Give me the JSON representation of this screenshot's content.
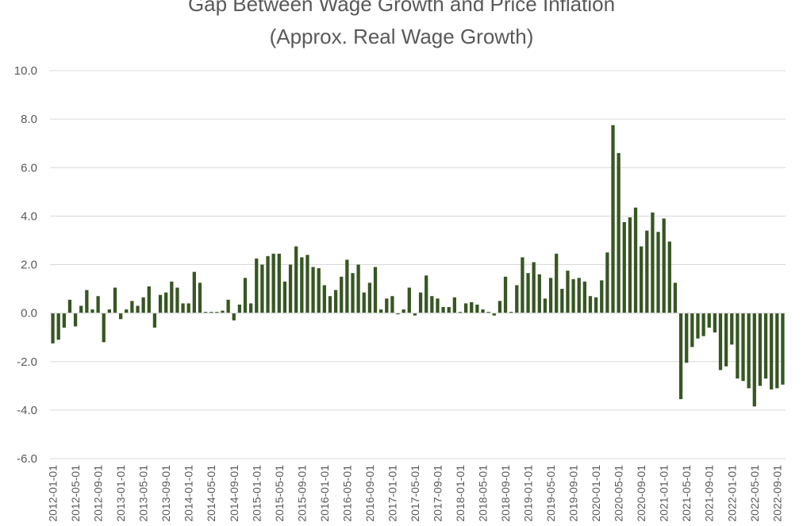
{
  "chart_data": {
    "type": "bar",
    "title": "Gap Between Wage Growth and Price Inflation",
    "subtitle": "(Approx. Real Wage Growth)",
    "xlabel": "",
    "ylabel": "",
    "ylim": [
      -6.0,
      10.0
    ],
    "y_ticks": [
      "10.0",
      "8.0",
      "6.0",
      "4.0",
      "2.0",
      "0.0",
      "-2.0",
      "-4.0",
      "-6.0"
    ],
    "grid": true,
    "legend": "none",
    "bar_color": "#375623",
    "x_tick_labels": [
      "2012-01-01",
      "2012-05-01",
      "2012-09-01",
      "2013-01-01",
      "2013-05-01",
      "2013-09-01",
      "2014-01-01",
      "2014-05-01",
      "2014-09-01",
      "2015-01-01",
      "2015-05-01",
      "2015-09-01",
      "2016-01-01",
      "2016-05-01",
      "2016-09-01",
      "2017-01-01",
      "2017-05-01",
      "2017-09-01",
      "2018-01-01",
      "2018-05-01",
      "2018-09-01",
      "2019-01-01",
      "2019-05-01",
      "2019-09-01",
      "2020-01-01",
      "2020-05-01",
      "2020-09-01",
      "2021-01-01",
      "2021-05-01",
      "2021-09-01",
      "2022-01-01",
      "2022-05-01",
      "2022-09-01"
    ],
    "x_tick_every": 4,
    "values": [
      -1.25,
      -1.1,
      -0.6,
      0.55,
      -0.55,
      0.3,
      0.95,
      0.15,
      0.7,
      -1.2,
      0.15,
      1.05,
      -0.25,
      0.15,
      0.5,
      0.3,
      0.65,
      1.1,
      -0.6,
      0.75,
      0.85,
      1.3,
      1.05,
      0.4,
      0.4,
      1.7,
      1.25,
      0.05,
      0.05,
      0.05,
      0.1,
      0.55,
      -0.3,
      0.35,
      1.45,
      0.4,
      2.25,
      2.0,
      2.35,
      2.45,
      2.45,
      1.3,
      2.0,
      2.75,
      2.3,
      2.4,
      1.9,
      1.85,
      1.15,
      0.7,
      0.95,
      1.5,
      2.2,
      1.65,
      2.0,
      0.85,
      1.25,
      1.9,
      0.15,
      0.6,
      0.7,
      -0.05,
      0.15,
      1.05,
      -0.1,
      0.85,
      1.55,
      0.7,
      0.6,
      0.25,
      0.25,
      0.65,
      0.05,
      0.4,
      0.45,
      0.35,
      0.15,
      0.05,
      -0.1,
      0.5,
      1.5,
      0.05,
      1.15,
      2.3,
      1.65,
      2.1,
      1.6,
      0.6,
      1.45,
      2.45,
      1.0,
      1.75,
      1.4,
      1.45,
      1.3,
      0.7,
      0.65,
      1.35,
      2.5,
      7.75,
      6.6,
      3.75,
      3.95,
      4.35,
      2.75,
      3.4,
      4.15,
      3.35,
      3.9,
      2.95,
      1.25,
      -3.55,
      -2.05,
      -1.4,
      -1.05,
      -0.95,
      -0.6,
      -0.8,
      -2.35,
      -2.2,
      -1.3,
      -2.7,
      -2.8,
      -3.1,
      -3.85,
      -3.0,
      -2.7,
      -3.15,
      -3.1,
      -2.95
    ]
  }
}
